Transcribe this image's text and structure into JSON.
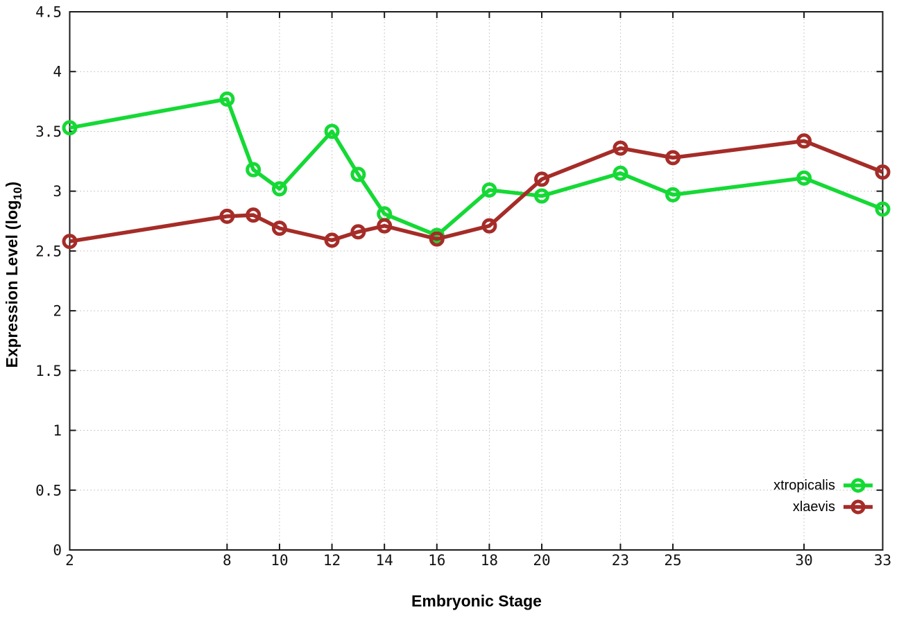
{
  "figure": {
    "background_color": "#ffffff",
    "border_color": "#1a1a1a",
    "grid_color": "#b8b8b8",
    "tick_label_color": "#111111"
  },
  "chart_data": {
    "type": "line",
    "title": "",
    "xlabel": "Embryonic Stage",
    "ylabel": "Expression Level (log10)",
    "ylabel_parts": {
      "main": "Expression Level (log",
      "sub": "10",
      "end": ")"
    },
    "xlim": [
      2,
      33
    ],
    "ylim": [
      0,
      4.5
    ],
    "grid": true,
    "legend_position": "bottom-right",
    "x": [
      2,
      8,
      9,
      10,
      12,
      13,
      14,
      16,
      18,
      20,
      23,
      25,
      30,
      33
    ],
    "x_tick_values": [
      2,
      8,
      10,
      12,
      14,
      16,
      18,
      20,
      23,
      25,
      30,
      33
    ],
    "x_tick_labels": [
      "2",
      "8",
      "10",
      "12",
      "14",
      "16",
      "18",
      "20",
      "23",
      "25",
      "30",
      "33"
    ],
    "y_tick_values": [
      0,
      0.5,
      1,
      1.5,
      2,
      2.5,
      3,
      3.5,
      4,
      4.5
    ],
    "y_tick_labels": [
      "0",
      "0.5",
      "1",
      "1.5",
      "2",
      "2.5",
      "3",
      "3.5",
      "4",
      "4.5"
    ],
    "series": [
      {
        "name": "xtropicalis",
        "color": "#15d935",
        "values": [
          3.53,
          3.77,
          3.18,
          3.02,
          3.5,
          3.14,
          2.81,
          2.63,
          3.01,
          2.96,
          3.15,
          2.97,
          3.11,
          2.85
        ]
      },
      {
        "name": "xlaevis",
        "color": "#a52c28",
        "values": [
          2.58,
          2.79,
          2.8,
          2.69,
          2.59,
          2.66,
          2.71,
          2.6,
          2.71,
          3.1,
          3.36,
          3.28,
          3.42,
          3.16
        ]
      }
    ]
  }
}
